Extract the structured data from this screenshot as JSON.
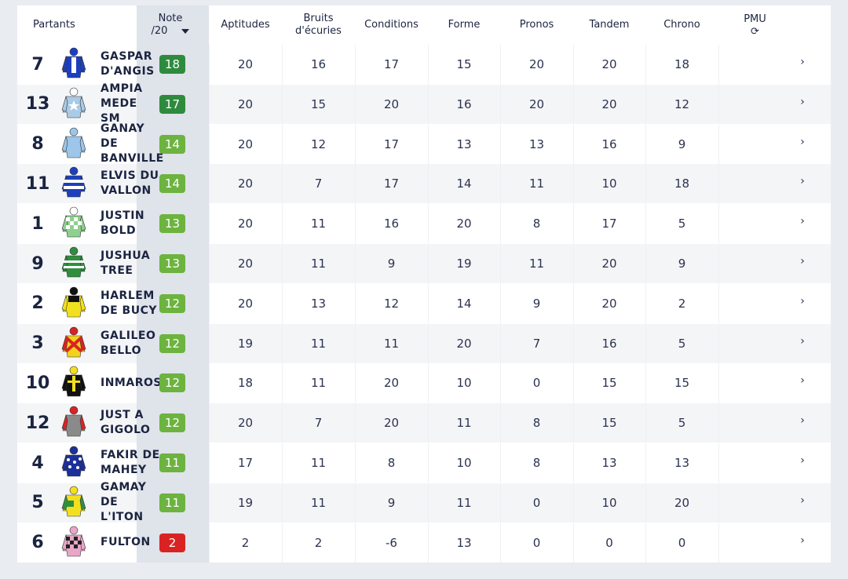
{
  "header": {
    "partants": "Partants",
    "note_line1": "Note",
    "note_line2": "/20",
    "aptitudes": "Aptitudes",
    "bruits_line1": "Bruits",
    "bruits_line2": "d'écuries",
    "conditions": "Conditions",
    "forme": "Forme",
    "pronos": "Pronos",
    "tandem": "Tandem",
    "chrono": "Chrono",
    "pmu": "PMU",
    "pmu_icon": "⟳"
  },
  "colors": {
    "badge_dark_green": "#2e8b3e",
    "badge_green": "#6db33f",
    "badge_red": "#d92323"
  },
  "rows": [
    {
      "num": "7",
      "name": "GASPAR D'ANGIS",
      "note": "18",
      "badge": "dark",
      "aptitudes": "20",
      "bruits": "16",
      "conditions": "17",
      "forme": "15",
      "pronos": "20",
      "tandem": "20",
      "chrono": "18",
      "arrow": "›",
      "silk": "blue"
    },
    {
      "num": "13",
      "name": "AMPIA MEDE SM",
      "note": "17",
      "badge": "dark",
      "aptitudes": "20",
      "bruits": "15",
      "conditions": "20",
      "forme": "16",
      "pronos": "20",
      "tandem": "20",
      "chrono": "12",
      "arrow": "›",
      "silk": "lightblue-star"
    },
    {
      "num": "8",
      "name": "GANAY DE BANVILLE",
      "note": "14",
      "badge": "green",
      "aptitudes": "20",
      "bruits": "12",
      "conditions": "17",
      "forme": "13",
      "pronos": "13",
      "tandem": "16",
      "chrono": "9",
      "arrow": "›",
      "silk": "lightblue"
    },
    {
      "num": "11",
      "name": "ELVIS DU VALLON",
      "note": "14",
      "badge": "green",
      "aptitudes": "20",
      "bruits": "7",
      "conditions": "17",
      "forme": "14",
      "pronos": "11",
      "tandem": "10",
      "chrono": "18",
      "arrow": "›",
      "silk": "blue-stripes"
    },
    {
      "num": "1",
      "name": "JUSTIN BOLD",
      "note": "13",
      "badge": "green",
      "aptitudes": "20",
      "bruits": "11",
      "conditions": "16",
      "forme": "20",
      "pronos": "8",
      "tandem": "17",
      "chrono": "5",
      "arrow": "›",
      "silk": "green-check"
    },
    {
      "num": "9",
      "name": "JUSHUA TREE",
      "note": "13",
      "badge": "green",
      "aptitudes": "20",
      "bruits": "11",
      "conditions": "9",
      "forme": "19",
      "pronos": "11",
      "tandem": "20",
      "chrono": "9",
      "arrow": "›",
      "silk": "green-stripes"
    },
    {
      "num": "2",
      "name": "HARLEM DE BUCY",
      "note": "12",
      "badge": "green",
      "aptitudes": "20",
      "bruits": "13",
      "conditions": "12",
      "forme": "14",
      "pronos": "9",
      "tandem": "20",
      "chrono": "2",
      "arrow": "›",
      "silk": "yellow-black"
    },
    {
      "num": "3",
      "name": "GALILEO BELLO",
      "note": "12",
      "badge": "green",
      "aptitudes": "19",
      "bruits": "11",
      "conditions": "11",
      "forme": "20",
      "pronos": "7",
      "tandem": "16",
      "chrono": "5",
      "arrow": "›",
      "silk": "red-yellow-x"
    },
    {
      "num": "10",
      "name": "INMAROSA",
      "note": "12",
      "badge": "green",
      "aptitudes": "18",
      "bruits": "11",
      "conditions": "20",
      "forme": "10",
      "pronos": "0",
      "tandem": "15",
      "chrono": "15",
      "arrow": "›",
      "silk": "black-yellow"
    },
    {
      "num": "12",
      "name": "JUST A GIGOLO",
      "note": "12",
      "badge": "green",
      "aptitudes": "20",
      "bruits": "7",
      "conditions": "20",
      "forme": "11",
      "pronos": "8",
      "tandem": "15",
      "chrono": "5",
      "arrow": "›",
      "silk": "grey-red"
    },
    {
      "num": "4",
      "name": "FAKIR DE MAHEY",
      "note": "11",
      "badge": "green",
      "aptitudes": "17",
      "bruits": "11",
      "conditions": "8",
      "forme": "10",
      "pronos": "8",
      "tandem": "13",
      "chrono": "13",
      "arrow": "›",
      "silk": "navy-dots"
    },
    {
      "num": "5",
      "name": "GAMAY DE L'ITON",
      "note": "11",
      "badge": "green",
      "aptitudes": "19",
      "bruits": "11",
      "conditions": "9",
      "forme": "11",
      "pronos": "0",
      "tandem": "10",
      "chrono": "20",
      "arrow": "›",
      "silk": "yellow-green"
    },
    {
      "num": "6",
      "name": "FULTON",
      "note": "2",
      "badge": "red",
      "aptitudes": "2",
      "bruits": "2",
      "conditions": "-6",
      "forme": "13",
      "pronos": "0",
      "tandem": "0",
      "chrono": "0",
      "arrow": "›",
      "silk": "pink-check"
    }
  ]
}
